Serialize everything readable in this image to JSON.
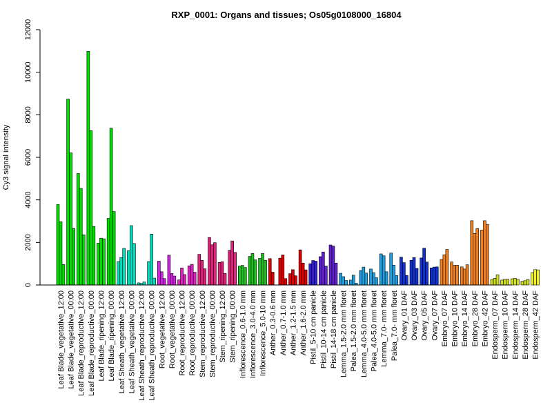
{
  "chart_data": {
    "type": "bar",
    "title": "RXP_0001: Organs and tissues; Os05g0108000_16804",
    "xlabel": "",
    "ylabel": "Cy3 signal intensity",
    "ylim": [
      0,
      12000
    ],
    "yticks": [
      0,
      2000,
      4000,
      6000,
      8000,
      10000,
      12000
    ],
    "groups": [
      {
        "label": "Leaf Blade_vegetative_12:00",
        "color": "#00e000",
        "values": [
          3780,
          2970,
          960
        ]
      },
      {
        "label": "Leaf Blade_vegetative_00:00",
        "color": "#00e000",
        "values": [
          8740,
          6210,
          2650
        ]
      },
      {
        "label": "Leaf Blade_reproductive_12:00",
        "color": "#00e000",
        "values": [
          5240,
          4540,
          2360
        ]
      },
      {
        "label": "Leaf Blade_reproductive_00:00",
        "color": "#00e000",
        "values": [
          10980,
          7250,
          2750
        ]
      },
      {
        "label": "Leaf Blade_ripening_12:00",
        "color": "#00e000",
        "values": [
          1970,
          2200,
          2170
        ]
      },
      {
        "label": "Leaf Blade_ripening_00:00",
        "color": "#00e000",
        "values": [
          3130,
          7370,
          3450
        ]
      },
      {
        "label": "Leaf Sheath_vegetative_12:00",
        "color": "#00e0c0",
        "values": [
          1100,
          1290,
          1720
        ]
      },
      {
        "label": "Leaf Sheath_vegetative_00:00",
        "color": "#00e0c0",
        "values": [
          1610,
          2790,
          1950
        ]
      },
      {
        "label": "Leaf Sheath_reproductive_12:00",
        "color": "#00e0c0",
        "values": [
          100,
          70,
          140
        ]
      },
      {
        "label": "Leaf Sheath_reproductive_00:00",
        "color": "#00e0c0",
        "values": [
          1100,
          2390,
          320
        ]
      },
      {
        "label": "Root_vegetative_12:00",
        "color": "#d020e0",
        "values": [
          1120,
          620,
          300
        ]
      },
      {
        "label": "Root_vegetative_00:00",
        "color": "#d020e0",
        "values": [
          1400,
          540,
          420
        ]
      },
      {
        "label": "Root_reproductive_12:00",
        "color": "#e020c0",
        "values": [
          240,
          800,
          490
        ]
      },
      {
        "label": "Root_reproductive_00:00",
        "color": "#e020c0",
        "values": [
          900,
          970,
          600
        ]
      },
      {
        "label": "Stem_reproductive_12:00",
        "color": "#e0207a",
        "values": [
          1440,
          1160,
          760
        ]
      },
      {
        "label": "Stem_reproductive_00:00",
        "color": "#e0207a",
        "values": [
          2230,
          1890,
          1990
        ]
      },
      {
        "label": "Stem_ripening_12:00",
        "color": "#e0207a",
        "values": [
          1060,
          1090,
          540
        ]
      },
      {
        "label": "Stem_ripening_00:00",
        "color": "#e0207a",
        "values": [
          1630,
          2070,
          1530
        ]
      },
      {
        "label": "Inflorescence_0.6-1.0 mm",
        "color": "#20c020",
        "values": [
          890,
          920,
          820
        ]
      },
      {
        "label": "Inflorescence_3.0-4.0 mm",
        "color": "#20c020",
        "values": [
          1340,
          1480,
          1180
        ]
      },
      {
        "label": "Inflorescence_5.0-10 mm",
        "color": "#20c020",
        "values": [
          1250,
          1480,
          1160
        ]
      },
      {
        "label": "Anther_0.3-0.6 mm",
        "color": "#e00000",
        "values": [
          1240,
          600,
          0
        ]
      },
      {
        "label": "Anther_0.7-1.0 mm",
        "color": "#e00000",
        "values": [
          1260,
          1410,
          300
        ]
      },
      {
        "label": "Anther_1.2-1.5 mm",
        "color": "#e00000",
        "values": [
          530,
          720,
          430
        ]
      },
      {
        "label": "Anther_1.6-2.0 mm",
        "color": "#e00000",
        "values": [
          1650,
          1030,
          710
        ]
      },
      {
        "label": "Pistil_5-10 cm panicle",
        "color": "#3020d0",
        "values": [
          1000,
          1150,
          1120
        ]
      },
      {
        "label": "Pistil_10-14 cm panicle",
        "color": "#6020d0",
        "values": [
          1330,
          1550,
          890
        ]
      },
      {
        "label": "Pistil_14-18 cm panicle",
        "color": "#6020d0",
        "values": [
          1880,
          1830,
          1030
        ]
      },
      {
        "label": "Lemma_1.5-2.0 mm floret",
        "color": "#20a0e0",
        "values": [
          550,
          390,
          210
        ]
      },
      {
        "label": "Palea_1.5-2.0 mm floret",
        "color": "#20a0e0",
        "values": [
          230,
          460,
          80
        ]
      },
      {
        "label": "Lemma_4.0-5.0 mm floret",
        "color": "#20a0e0",
        "values": [
          680,
          840,
          560
        ]
      },
      {
        "label": "Palea_4.0-5.0 mm floret",
        "color": "#20a0e0",
        "values": [
          750,
          580,
          340
        ]
      },
      {
        "label": "Lemma_7.0- mm floret",
        "color": "#20a0e0",
        "values": [
          1460,
          1370,
          620
        ]
      },
      {
        "label": "Palea_7.0- mm floret",
        "color": "#20a0e0",
        "values": [
          1500,
          930,
          440
        ]
      },
      {
        "label": "Ovary_01 DAF",
        "color": "#1030d0",
        "values": [
          1310,
          1050,
          450
        ]
      },
      {
        "label": "Ovary_03 DAF",
        "color": "#1030d0",
        "values": [
          1160,
          1290,
          780
        ]
      },
      {
        "label": "Ovary_05 DAF",
        "color": "#1030d0",
        "values": [
          1270,
          1730,
          1080
        ]
      },
      {
        "label": "Ovary_07 DAF",
        "color": "#1030d0",
        "values": [
          800,
          840,
          850
        ]
      },
      {
        "label": "Embryo_07 DAF",
        "color": "#f08020",
        "values": [
          1200,
          1420,
          1670
        ]
      },
      {
        "label": "Embryo_10 DAF",
        "color": "#f08020",
        "values": [
          1080,
          920,
          930
        ]
      },
      {
        "label": "Embryo_14 DAF",
        "color": "#f08020",
        "values": [
          850,
          750,
          950
        ]
      },
      {
        "label": "Embryo_28 DAF",
        "color": "#f08020",
        "values": [
          3020,
          2420,
          2650
        ]
      },
      {
        "label": "Embryo_42 DAF",
        "color": "#f08020",
        "values": [
          2580,
          3020,
          2850
        ]
      },
      {
        "label": "Endosperm_07 DAF",
        "color": "#d0e020",
        "values": [
          260,
          310,
          480
        ]
      },
      {
        "label": "Endosperm_10 DAF",
        "color": "#d0e020",
        "values": [
          230,
          270,
          270
        ]
      },
      {
        "label": "Endosperm_14 DAF",
        "color": "#d0e020",
        "values": [
          290,
          310,
          270
        ]
      },
      {
        "label": "Endosperm_28 DAF",
        "color": "#d0e020",
        "values": [
          170,
          200,
          260
        ]
      },
      {
        "label": "Endosperm_42 DAF",
        "color": "#f0f020",
        "values": [
          580,
          720,
          710
        ]
      }
    ]
  }
}
